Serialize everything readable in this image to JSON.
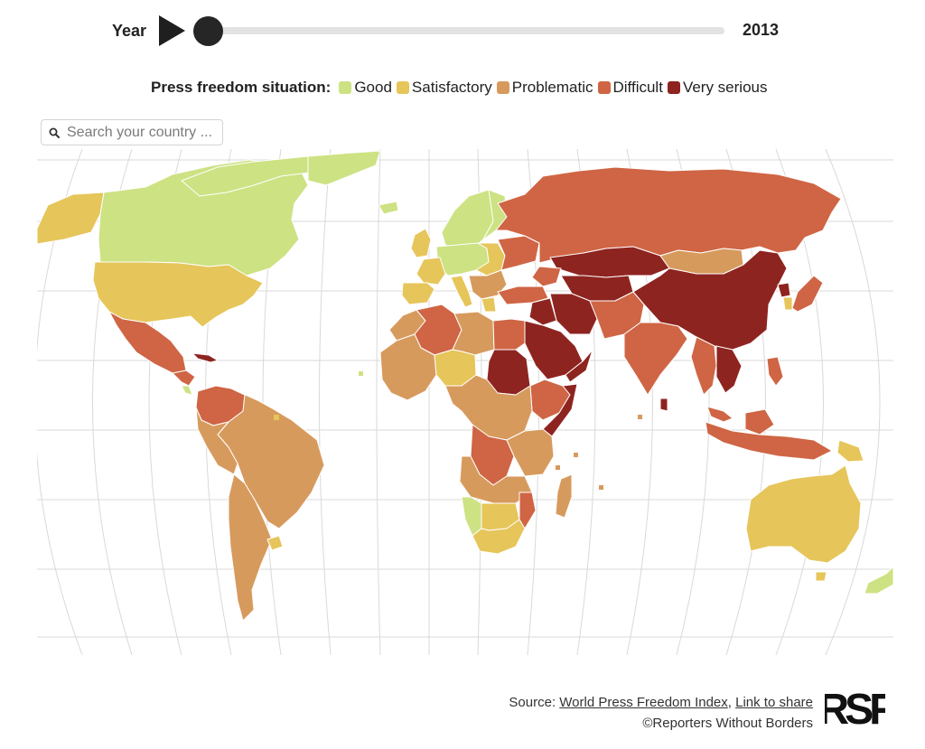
{
  "year_control": {
    "label": "Year",
    "value": "2013",
    "slider_position": 0.0
  },
  "legend": {
    "title": "Press freedom situation:",
    "items": [
      {
        "label": "Good",
        "color": "#cde283"
      },
      {
        "label": "Satisfactory",
        "color": "#e6c55a"
      },
      {
        "label": "Problematic",
        "color": "#d79a5d"
      },
      {
        "label": "Difficult",
        "color": "#cf6544"
      },
      {
        "label": "Very serious",
        "color": "#8e2420"
      }
    ]
  },
  "search": {
    "placeholder": "Search your country ..."
  },
  "map": {
    "projection": "Robinson",
    "graticule": true,
    "ocean_color": "#ffffff",
    "graticule_color": "#d9d9d9",
    "border_color": "#ffffff"
  },
  "footer": {
    "source_prefix": "Source: ",
    "source_link": "World Press Freedom Index",
    "separator": ", ",
    "share_link": "Link to share",
    "copyright": "©Reporters Without Borders",
    "logo_text": "RSF"
  }
}
